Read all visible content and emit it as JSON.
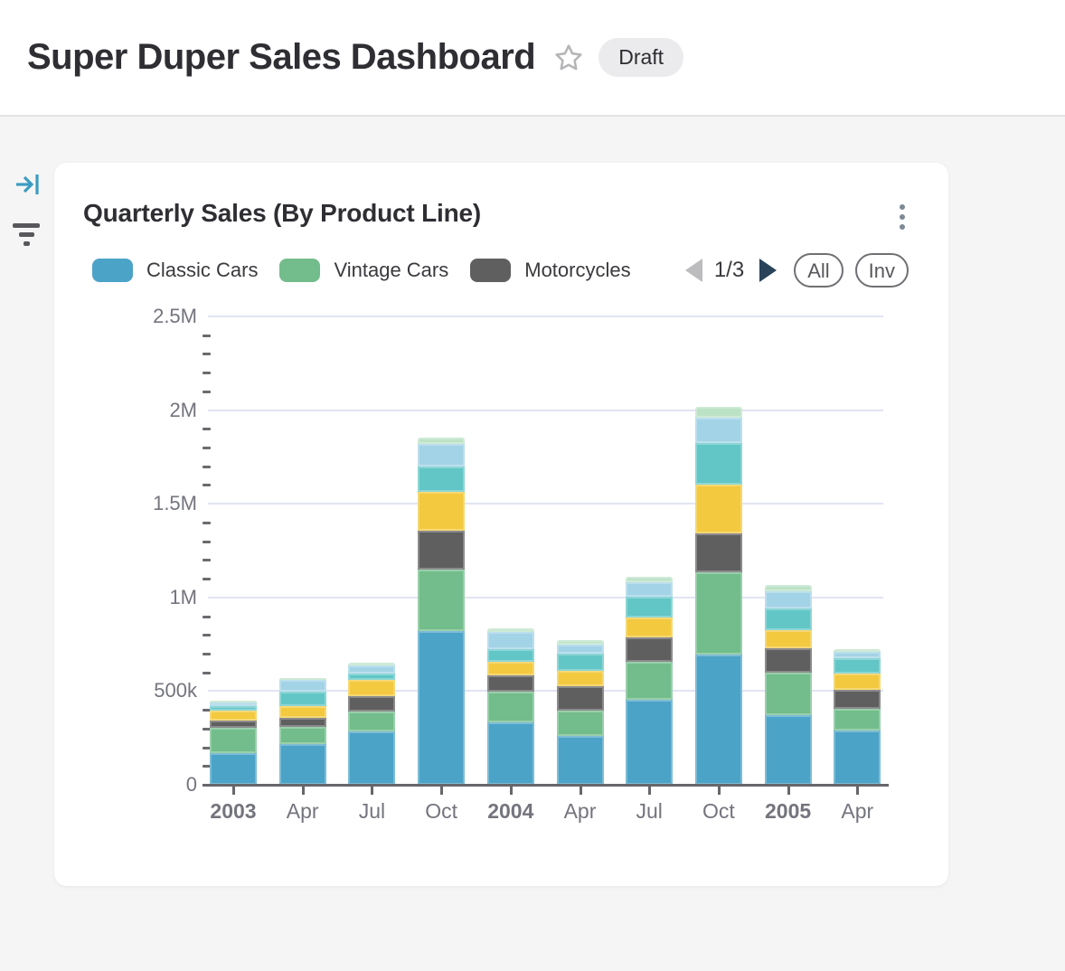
{
  "header": {
    "title": "Super Duper Sales Dashboard",
    "badge": "Draft"
  },
  "sidebar": {
    "icons": [
      "collapse-panel-icon",
      "filter-icon"
    ]
  },
  "card": {
    "title": "Quarterly Sales (By Product Line)",
    "legend": {
      "items": [
        {
          "label": "Classic Cars",
          "color": "#4ba3c7"
        },
        {
          "label": "Vintage Cars",
          "color": "#72bd8b"
        },
        {
          "label": "Motorcycles",
          "color": "#5f5f5f"
        }
      ],
      "note": "legend paginated; page 1 of 3 visible"
    },
    "pagination": {
      "label": "1/3",
      "prev_enabled": false,
      "next_enabled": true
    },
    "buttons": {
      "all": "All",
      "inv": "Inv"
    }
  },
  "colors": {
    "accent_blue": "#3b9cc2",
    "page_bg": "#f5f5f6",
    "gridline": "#e1e4f2",
    "axis": "#66666b",
    "axis_text": "#74747e"
  },
  "chart_data": {
    "type": "bar",
    "stacked": true,
    "title": "Quarterly Sales (By Product Line)",
    "xlabel": "",
    "ylabel": "",
    "ylim": [
      0,
      2500000
    ],
    "yticks": [
      {
        "label": "0",
        "value": 0
      },
      {
        "label": "500k",
        "value": 500000
      },
      {
        "label": "1M",
        "value": 1000000
      },
      {
        "label": "1.5M",
        "value": 1500000
      },
      {
        "label": "2M",
        "value": 2000000
      },
      {
        "label": "2.5M",
        "value": 2500000
      }
    ],
    "minor_tick_step": 100000,
    "grid": true,
    "legend_position": "top",
    "categories": [
      {
        "label": "2003",
        "bold": true
      },
      {
        "label": "Apr",
        "bold": false
      },
      {
        "label": "Jul",
        "bold": false
      },
      {
        "label": "Oct",
        "bold": false
      },
      {
        "label": "2004",
        "bold": true
      },
      {
        "label": "Apr",
        "bold": false
      },
      {
        "label": "Jul",
        "bold": false
      },
      {
        "label": "Oct",
        "bold": false
      },
      {
        "label": "2005",
        "bold": true
      },
      {
        "label": "Apr",
        "bold": false
      }
    ],
    "series": [
      {
        "name": "Classic Cars",
        "color": "#4ba3c7",
        "values": [
          170000,
          215000,
          285000,
          820000,
          335000,
          260000,
          455000,
          695000,
          370000,
          290000
        ]
      },
      {
        "name": "Vintage Cars",
        "color": "#72bd8b",
        "values": [
          135000,
          95000,
          105000,
          330000,
          160000,
          135000,
          200000,
          440000,
          230000,
          115000
        ]
      },
      {
        "name": "Motorcycles",
        "color": "#5f5f5f",
        "values": [
          40000,
          45000,
          85000,
          205000,
          90000,
          130000,
          130000,
          205000,
          130000,
          100000
        ]
      },
      {
        "name": "Unlabeled (yellow, legend page 2-3)",
        "color": "#f3c93f",
        "values": [
          50000,
          65000,
          85000,
          210000,
          70000,
          85000,
          110000,
          260000,
          95000,
          90000
        ]
      },
      {
        "name": "Unlabeled (teal, legend page 2-3)",
        "color": "#62c6c6",
        "values": [
          25000,
          75000,
          35000,
          135000,
          70000,
          90000,
          110000,
          225000,
          115000,
          80000
        ]
      },
      {
        "name": "Unlabeled (light blue, legend page 2-3)",
        "color": "#a3d3e6",
        "values": [
          20000,
          65000,
          40000,
          120000,
          90000,
          50000,
          75000,
          135000,
          95000,
          35000
        ]
      },
      {
        "name": "Unlabeled (light green, legend page 2-3)",
        "color": "#bce2c6",
        "values": [
          8000,
          10000,
          15000,
          35000,
          20000,
          20000,
          30000,
          55000,
          30000,
          15000
        ]
      }
    ]
  }
}
